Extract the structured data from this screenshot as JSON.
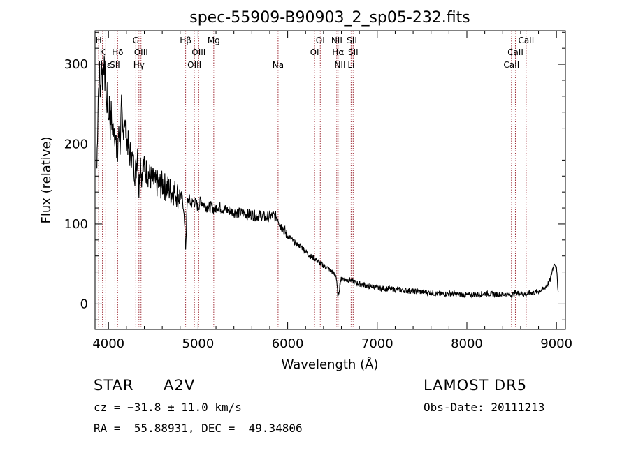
{
  "chart_data": {
    "type": "line",
    "title": "spec-55909-B90903_2_sp05-232.fits",
    "xlabel": "Wavelength (Å)",
    "ylabel": "Flux (relative)",
    "xlim": [
      3850,
      9100
    ],
    "ylim": [
      -32,
      342
    ],
    "x_ticks": [
      4000,
      5000,
      6000,
      7000,
      8000,
      9000
    ],
    "y_ticks": [
      0,
      100,
      200,
      300
    ],
    "grid": false,
    "line_color": "#000000",
    "marker_color": "#a0303a",
    "series": [
      {
        "x": [
          3870,
          3885,
          3900,
          3910,
          3920,
          3933,
          3945,
          3960,
          3970,
          3980,
          3990,
          4000,
          4010,
          4020,
          4030,
          4045,
          4060,
          4075,
          4090,
          4102,
          4115,
          4130,
          4145,
          4160,
          4175,
          4190,
          4205,
          4220,
          4235,
          4250,
          4265,
          4280,
          4295,
          4310,
          4325,
          4340,
          4355,
          4370,
          4385,
          4400,
          4430,
          4460,
          4490,
          4520,
          4550,
          4580,
          4610,
          4640,
          4670,
          4700,
          4730,
          4760,
          4790,
          4820,
          4840,
          4861,
          4880,
          4900,
          4920,
          4950,
          4980,
          5000,
          5030,
          5060,
          5090,
          5120,
          5150,
          5180,
          5220,
          5260,
          5300,
          5350,
          5400,
          5450,
          5500,
          5550,
          5600,
          5650,
          5700,
          5750,
          5800,
          5850,
          5890,
          5920,
          5950,
          5980,
          6000,
          6050,
          6100,
          6150,
          6200,
          6250,
          6300,
          6350,
          6400,
          6450,
          6500,
          6540,
          6563,
          6590,
          6620,
          6650,
          6700,
          6750,
          6800,
          6850,
          6900,
          6950,
          7000,
          7100,
          7200,
          7300,
          7400,
          7500,
          7600,
          7700,
          7800,
          7900,
          8000,
          8100,
          8200,
          8300,
          8400,
          8500,
          8540,
          8600,
          8662,
          8700,
          8750,
          8800,
          8850,
          8900,
          8930,
          8960,
          8980,
          9000,
          9010,
          9020
        ],
        "y": [
          170,
          260,
          300,
          250,
          305,
          280,
          310,
          280,
          290,
          240,
          260,
          230,
          250,
          220,
          240,
          215,
          225,
          210,
          190,
          180,
          225,
          200,
          245,
          210,
          235,
          220,
          205,
          200,
          185,
          190,
          180,
          175,
          165,
          170,
          195,
          140,
          185,
          160,
          175,
          170,
          165,
          160,
          155,
          150,
          150,
          148,
          150,
          145,
          145,
          140,
          140,
          138,
          135,
          133,
          120,
          70,
          128,
          132,
          125,
          128,
          126,
          120,
          130,
          125,
          122,
          120,
          122,
          118,
          122,
          120,
          118,
          117,
          115,
          114,
          114,
          112,
          112,
          110,
          111,
          108,
          110,
          110,
          108,
          98,
          95,
          88,
          85,
          80,
          75,
          72,
          66,
          60,
          57,
          52,
          48,
          44,
          40,
          35,
          8,
          30,
          32,
          30,
          30,
          27,
          25,
          24,
          22,
          22,
          20,
          19,
          18,
          17,
          16,
          15,
          14,
          12,
          13,
          12,
          11,
          12,
          13,
          12,
          12,
          11,
          14,
          13,
          12,
          14,
          14,
          16,
          18,
          24,
          30,
          45,
          52,
          44,
          30,
          15
        ]
      }
    ],
    "lines": [
      {
        "x": 3890,
        "label": "H",
        "row": 0
      },
      {
        "x": 3933,
        "label": "K",
        "row": 1
      },
      {
        "x": 3970,
        "label": "Hε",
        "row": 2
      },
      {
        "x": 4072,
        "label": "SII",
        "row": 2
      },
      {
        "x": 4102,
        "label": "Hδ",
        "row": 1
      },
      {
        "x": 4305,
        "label": "G",
        "row": 0
      },
      {
        "x": 4340,
        "label": "Hγ",
        "row": 2
      },
      {
        "x": 4363,
        "label": "OIII",
        "row": 1
      },
      {
        "x": 4861,
        "label": "Hβ",
        "row": 0
      },
      {
        "x": 4959,
        "label": "OIII",
        "row": 2
      },
      {
        "x": 5007,
        "label": "OIII",
        "row": 1
      },
      {
        "x": 5175,
        "label": "Mg",
        "row": 0
      },
      {
        "x": 5893,
        "label": "Na",
        "row": 2
      },
      {
        "x": 6300,
        "label": "OI",
        "row": 1
      },
      {
        "x": 6364,
        "label": "OI",
        "row": 0
      },
      {
        "x": 6548,
        "label": "NII",
        "row": 0
      },
      {
        "x": 6563,
        "label": "Hα",
        "row": 1
      },
      {
        "x": 6584,
        "label": "NII",
        "row": 2
      },
      {
        "x": 6708,
        "label": "Li",
        "row": 2
      },
      {
        "x": 6717,
        "label": "SII",
        "row": 0
      },
      {
        "x": 6731,
        "label": "SII",
        "row": 1
      },
      {
        "x": 8498,
        "label": "CaII",
        "row": 2
      },
      {
        "x": 8542,
        "label": "CaII",
        "row": 1
      },
      {
        "x": 8662,
        "label": "CaII",
        "row": 0
      }
    ]
  },
  "info": {
    "object_class": "STAR",
    "subclass": "A2V",
    "survey": "LAMOST DR5",
    "cz": "cz = −31.8 ± 11.0 km/s",
    "obs_date": "Obs-Date: 20111213",
    "coords": "RA =  55.88931, DEC =  49.34806"
  }
}
